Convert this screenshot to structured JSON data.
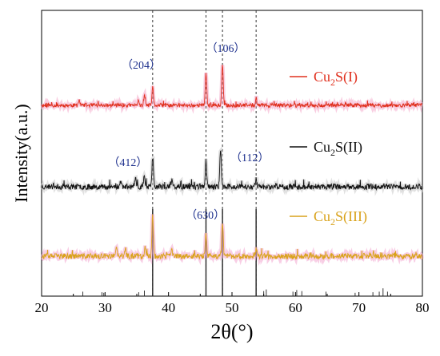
{
  "chart_data": {
    "type": "line",
    "xlabel": "2θ(°)",
    "ylabel": "Intensity(a.u.)",
    "xlim": [
      20,
      80
    ],
    "x_ticks": [
      20,
      30,
      40,
      50,
      60,
      70,
      80
    ],
    "y_ticks_visible": false,
    "grid": false,
    "legend_placement": "right, beside each trace",
    "peak_positions": [
      37.5,
      45.9,
      48.5,
      53.8
    ],
    "series": [
      {
        "name": "Cu2S(I)",
        "label_main": "Cu",
        "label_sub": "2",
        "label_tail": "S(I)",
        "color": "#e0301e",
        "fill": "#f4a6c8",
        "baseline": 2.0,
        "noise": 0.025,
        "seed": 11,
        "peaks": [
          {
            "x": 25.9,
            "h": 0.07
          },
          {
            "x": 35.2,
            "h": 0.05
          },
          {
            "x": 36.2,
            "h": 0.12
          },
          {
            "x": 37.5,
            "h": 0.22
          },
          {
            "x": 45.9,
            "h": 0.42
          },
          {
            "x": 48.5,
            "h": 0.52
          },
          {
            "x": 53.8,
            "h": 0.09
          }
        ]
      },
      {
        "name": "Cu2S(II)",
        "label_main": "Cu",
        "label_sub": "2",
        "label_tail": "S(II)",
        "color": "#111111",
        "fill": "#c8c8c8",
        "baseline": 1.0,
        "noise": 0.035,
        "seed": 23,
        "peaks": [
          {
            "x": 32.5,
            "h": 0.08
          },
          {
            "x": 34.8,
            "h": 0.09
          },
          {
            "x": 36.2,
            "h": 0.15
          },
          {
            "x": 37.5,
            "h": 0.37
          },
          {
            "x": 40.5,
            "h": 0.08
          },
          {
            "x": 45.9,
            "h": 0.33
          },
          {
            "x": 48.2,
            "h": 0.47
          },
          {
            "x": 53.8,
            "h": 0.09
          }
        ]
      },
      {
        "name": "Cu2S(III)",
        "label_main": "Cu",
        "label_sub": "2",
        "label_tail": "S(III)",
        "color": "#d9a21b",
        "fill": "#f2a6cf",
        "baseline": 0.0,
        "noise": 0.035,
        "seed": 37,
        "peaks": [
          {
            "x": 31.8,
            "h": 0.09
          },
          {
            "x": 33.2,
            "h": 0.1
          },
          {
            "x": 36.3,
            "h": 0.12
          },
          {
            "x": 37.5,
            "h": 0.52
          },
          {
            "x": 40.5,
            "h": 0.09
          },
          {
            "x": 45.9,
            "h": 0.3
          },
          {
            "x": 48.5,
            "h": 0.44
          },
          {
            "x": 53.8,
            "h": 0.09
          }
        ]
      }
    ],
    "reference_pattern": {
      "x": [
        26.5,
        29.5,
        29.8,
        35.3,
        36.2,
        37.5,
        45.9,
        48.5,
        53.8,
        55.0,
        55.4,
        59.6,
        60.2,
        61.0,
        64.8,
        69.4,
        72.2,
        73.2,
        73.8,
        74.5
      ],
      "h": [
        0.08,
        0.07,
        0.06,
        0.07,
        0.1,
        1.0,
        1.0,
        1.0,
        1.0,
        0.09,
        0.12,
        0.08,
        0.11,
        0.09,
        0.08,
        0.06,
        0.07,
        0.08,
        0.14,
        0.08
      ]
    },
    "annotations": [
      {
        "text": "（204）",
        "x": 35.7,
        "series": 0
      },
      {
        "text": "（106）",
        "x": 49.0,
        "series": 0
      },
      {
        "text": "（412）",
        "x": 33.6,
        "series": 1
      },
      {
        "text": "（112）",
        "x": 52.8,
        "series": 1
      },
      {
        "text": "（630）",
        "x": 45.8,
        "series": 2
      }
    ],
    "annotation_color": "#1c2f8c"
  }
}
